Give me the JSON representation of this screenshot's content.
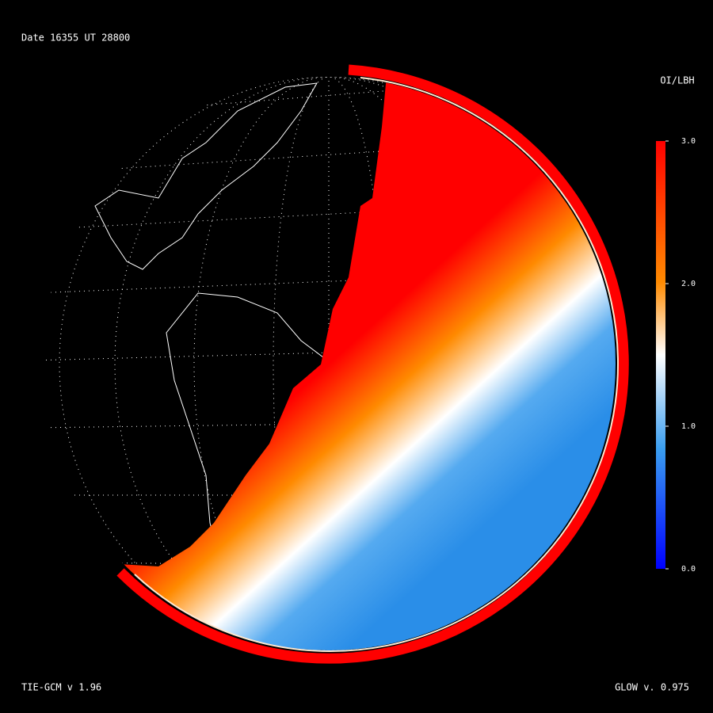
{
  "header": {
    "date": "Date 16355  UT 28800"
  },
  "colorbar": {
    "title": "OI/LBH",
    "range": [
      0,
      3
    ],
    "ticks": [
      {
        "value": 3,
        "label": "3.0"
      },
      {
        "value": 2,
        "label": "2.0"
      },
      {
        "value": 1,
        "label": "1.0"
      },
      {
        "value": 0,
        "label": "0.0"
      }
    ]
  },
  "footer": {
    "model": "TIE-GCM v 1.96",
    "glow": "GLOW v. 0.975"
  }
}
